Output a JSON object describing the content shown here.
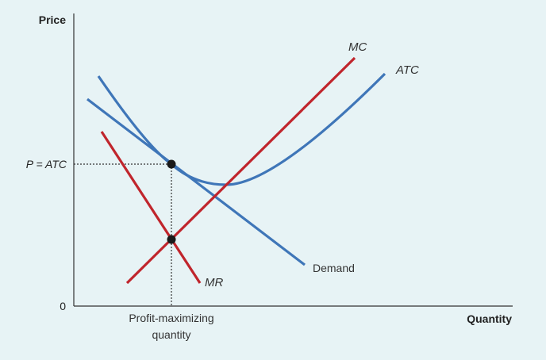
{
  "diagram": {
    "y_axis_title": "Price",
    "x_axis_title": "Quantity",
    "y_origin_label": "0",
    "price_label": "P = ATC",
    "quantity_label_line1": "Profit-maximizing",
    "quantity_label_line2": "quantity",
    "curves": {
      "mc": "MC",
      "atc": "ATC",
      "demand": "Demand",
      "mr": "MR"
    },
    "colors": {
      "background": "#e7f3f5",
      "blue_curves": "#3f76b8",
      "red_curves": "#c0252c",
      "axes": "#333333",
      "points": "#1a1a1a"
    }
  }
}
